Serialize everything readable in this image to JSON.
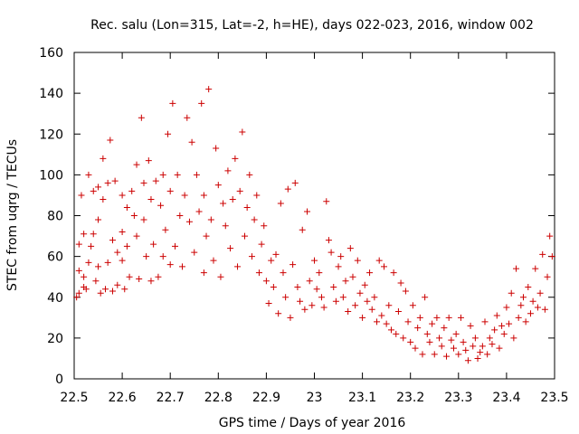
{
  "chart_data": {
    "type": "scatter",
    "title": "Rec. salu (Lon=315, Lat=-2, h=HE), days 022-023, 2016, window 002",
    "xlabel": "GPS time / Days of year 2016",
    "ylabel": "STEC from uqrg / TECUs",
    "xlim": [
      22.5,
      23.5
    ],
    "ylim": [
      0,
      160
    ],
    "xticks": [
      "22.5",
      "22.6",
      "22.7",
      "22.8",
      "22.9",
      "23",
      "23.1",
      "23.2",
      "23.3",
      "23.4",
      "23.5"
    ],
    "yticks": [
      "0",
      "20",
      "40",
      "60",
      "80",
      "100",
      "120",
      "140",
      "160"
    ],
    "grid": false,
    "legend": "none",
    "marker": "plus",
    "color": "#cc0000",
    "points": [
      [
        22.505,
        40
      ],
      [
        22.51,
        42
      ],
      [
        22.51,
        53
      ],
      [
        22.51,
        66
      ],
      [
        22.515,
        90
      ],
      [
        22.52,
        45
      ],
      [
        22.52,
        50
      ],
      [
        22.52,
        71
      ],
      [
        22.525,
        44
      ],
      [
        22.53,
        100
      ],
      [
        22.53,
        57
      ],
      [
        22.535,
        65
      ],
      [
        22.54,
        92
      ],
      [
        22.54,
        71
      ],
      [
        22.545,
        48
      ],
      [
        22.55,
        94
      ],
      [
        22.55,
        78
      ],
      [
        22.55,
        55
      ],
      [
        22.555,
        42
      ],
      [
        22.56,
        108
      ],
      [
        22.56,
        88
      ],
      [
        22.565,
        44
      ],
      [
        22.57,
        96
      ],
      [
        22.57,
        57
      ],
      [
        22.575,
        117
      ],
      [
        22.58,
        43
      ],
      [
        22.58,
        68
      ],
      [
        22.585,
        97
      ],
      [
        22.59,
        62
      ],
      [
        22.59,
        46
      ],
      [
        22.6,
        90
      ],
      [
        22.6,
        72
      ],
      [
        22.6,
        58
      ],
      [
        22.605,
        44
      ],
      [
        22.61,
        84
      ],
      [
        22.61,
        65
      ],
      [
        22.615,
        50
      ],
      [
        22.62,
        92
      ],
      [
        22.625,
        80
      ],
      [
        22.63,
        105
      ],
      [
        22.63,
        70
      ],
      [
        22.635,
        49
      ],
      [
        22.64,
        128
      ],
      [
        22.645,
        96
      ],
      [
        22.645,
        78
      ],
      [
        22.65,
        60
      ],
      [
        22.655,
        107
      ],
      [
        22.66,
        88
      ],
      [
        22.66,
        48
      ],
      [
        22.665,
        66
      ],
      [
        22.67,
        97
      ],
      [
        22.675,
        50
      ],
      [
        22.68,
        85
      ],
      [
        22.685,
        100
      ],
      [
        22.685,
        60
      ],
      [
        22.69,
        73
      ],
      [
        22.695,
        120
      ],
      [
        22.7,
        56
      ],
      [
        22.7,
        92
      ],
      [
        22.705,
        135
      ],
      [
        22.71,
        65
      ],
      [
        22.715,
        100
      ],
      [
        22.72,
        80
      ],
      [
        22.725,
        55
      ],
      [
        22.73,
        90
      ],
      [
        22.735,
        128
      ],
      [
        22.74,
        77
      ],
      [
        22.745,
        116
      ],
      [
        22.75,
        62
      ],
      [
        22.755,
        100
      ],
      [
        22.76,
        82
      ],
      [
        22.765,
        135
      ],
      [
        22.77,
        52
      ],
      [
        22.77,
        90
      ],
      [
        22.775,
        70
      ],
      [
        22.78,
        142
      ],
      [
        22.785,
        78
      ],
      [
        22.79,
        58
      ],
      [
        22.795,
        113
      ],
      [
        22.8,
        95
      ],
      [
        22.805,
        50
      ],
      [
        22.81,
        86
      ],
      [
        22.815,
        75
      ],
      [
        22.82,
        102
      ],
      [
        22.825,
        64
      ],
      [
        22.83,
        88
      ],
      [
        22.835,
        108
      ],
      [
        22.84,
        55
      ],
      [
        22.845,
        92
      ],
      [
        22.85,
        121
      ],
      [
        22.855,
        70
      ],
      [
        22.86,
        84
      ],
      [
        22.865,
        100
      ],
      [
        22.87,
        60
      ],
      [
        22.875,
        78
      ],
      [
        22.88,
        90
      ],
      [
        22.885,
        52
      ],
      [
        22.89,
        66
      ],
      [
        22.895,
        75
      ],
      [
        22.9,
        48
      ],
      [
        22.905,
        37
      ],
      [
        22.91,
        58
      ],
      [
        22.915,
        45
      ],
      [
        22.92,
        61
      ],
      [
        22.925,
        32
      ],
      [
        22.93,
        86
      ],
      [
        22.935,
        52
      ],
      [
        22.94,
        40
      ],
      [
        22.945,
        93
      ],
      [
        22.95,
        30
      ],
      [
        22.955,
        56
      ],
      [
        22.96,
        96
      ],
      [
        22.965,
        45
      ],
      [
        22.97,
        38
      ],
      [
        22.975,
        73
      ],
      [
        22.98,
        34
      ],
      [
        22.985,
        82
      ],
      [
        22.99,
        48
      ],
      [
        22.995,
        36
      ],
      [
        23.0,
        58
      ],
      [
        23.005,
        44
      ],
      [
        23.01,
        52
      ],
      [
        23.015,
        40
      ],
      [
        23.02,
        35
      ],
      [
        23.025,
        87
      ],
      [
        23.03,
        68
      ],
      [
        23.035,
        62
      ],
      [
        23.04,
        45
      ],
      [
        23.045,
        38
      ],
      [
        23.05,
        55
      ],
      [
        23.055,
        60
      ],
      [
        23.06,
        40
      ],
      [
        23.065,
        48
      ],
      [
        23.07,
        33
      ],
      [
        23.075,
        64
      ],
      [
        23.08,
        50
      ],
      [
        23.085,
        36
      ],
      [
        23.09,
        58
      ],
      [
        23.095,
        42
      ],
      [
        23.1,
        30
      ],
      [
        23.105,
        46
      ],
      [
        23.11,
        38
      ],
      [
        23.115,
        52
      ],
      [
        23.12,
        34
      ],
      [
        23.125,
        40
      ],
      [
        23.13,
        28
      ],
      [
        23.135,
        58
      ],
      [
        23.14,
        31
      ],
      [
        23.145,
        55
      ],
      [
        23.15,
        27
      ],
      [
        23.155,
        36
      ],
      [
        23.16,
        24
      ],
      [
        23.165,
        52
      ],
      [
        23.17,
        22
      ],
      [
        23.175,
        33
      ],
      [
        23.18,
        47
      ],
      [
        23.185,
        20
      ],
      [
        23.19,
        43
      ],
      [
        23.195,
        28
      ],
      [
        23.2,
        18
      ],
      [
        23.205,
        36
      ],
      [
        23.21,
        15
      ],
      [
        23.215,
        25
      ],
      [
        23.22,
        30
      ],
      [
        23.225,
        12
      ],
      [
        23.23,
        40
      ],
      [
        23.235,
        22
      ],
      [
        23.24,
        18
      ],
      [
        23.245,
        27
      ],
      [
        23.25,
        12
      ],
      [
        23.255,
        30
      ],
      [
        23.26,
        20
      ],
      [
        23.265,
        16
      ],
      [
        23.27,
        25
      ],
      [
        23.275,
        11
      ],
      [
        23.28,
        30
      ],
      [
        23.285,
        19
      ],
      [
        23.29,
        15
      ],
      [
        23.295,
        22
      ],
      [
        23.3,
        12
      ],
      [
        23.305,
        30
      ],
      [
        23.31,
        18
      ],
      [
        23.315,
        14
      ],
      [
        23.32,
        9
      ],
      [
        23.325,
        26
      ],
      [
        23.33,
        16
      ],
      [
        23.335,
        20
      ],
      [
        23.34,
        10
      ],
      [
        23.345,
        13
      ],
      [
        23.35,
        16
      ],
      [
        23.355,
        28
      ],
      [
        23.36,
        12
      ],
      [
        23.365,
        20
      ],
      [
        23.37,
        17
      ],
      [
        23.375,
        24
      ],
      [
        23.38,
        31
      ],
      [
        23.385,
        15
      ],
      [
        23.39,
        26
      ],
      [
        23.395,
        22
      ],
      [
        23.4,
        35
      ],
      [
        23.405,
        27
      ],
      [
        23.41,
        42
      ],
      [
        23.415,
        20
      ],
      [
        23.42,
        54
      ],
      [
        23.425,
        30
      ],
      [
        23.43,
        36
      ],
      [
        23.435,
        40
      ],
      [
        23.44,
        28
      ],
      [
        23.445,
        45
      ],
      [
        23.45,
        32
      ],
      [
        23.455,
        38
      ],
      [
        23.46,
        54
      ],
      [
        23.465,
        35
      ],
      [
        23.47,
        42
      ],
      [
        23.475,
        61
      ],
      [
        23.48,
        34
      ],
      [
        23.485,
        50
      ],
      [
        23.49,
        70
      ],
      [
        23.495,
        60
      ]
    ]
  }
}
